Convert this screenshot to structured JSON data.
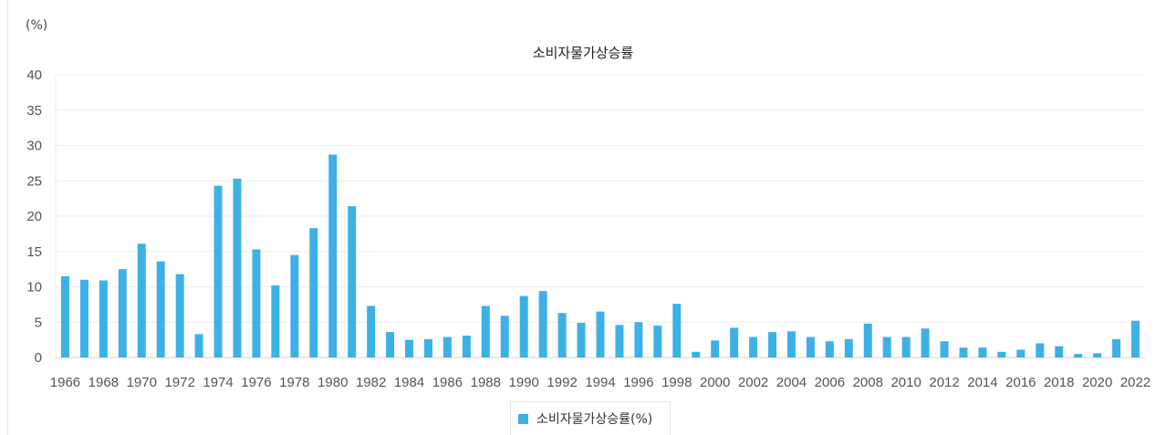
{
  "chart_data": {
    "type": "bar",
    "title": "소비자물가상승률",
    "ylabel": "(%)",
    "xlabel": "",
    "ylim": [
      0,
      40
    ],
    "yticks": [
      0,
      5,
      10,
      15,
      20,
      25,
      30,
      35,
      40
    ],
    "grid": true,
    "legend_position": "bottom-center",
    "bar_color": "#3db1e6",
    "categories": [
      "1966",
      "1967",
      "1968",
      "1969",
      "1970",
      "1971",
      "1972",
      "1973",
      "1974",
      "1975",
      "1976",
      "1977",
      "1978",
      "1979",
      "1980",
      "1981",
      "1982",
      "1983",
      "1984",
      "1985",
      "1986",
      "1987",
      "1988",
      "1989",
      "1990",
      "1991",
      "1992",
      "1993",
      "1994",
      "1995",
      "1996",
      "1997",
      "1998",
      "1999",
      "2000",
      "2001",
      "2002",
      "2003",
      "2004",
      "2005",
      "2006",
      "2007",
      "2008",
      "2009",
      "2010",
      "2011",
      "2012",
      "2013",
      "2014",
      "2015",
      "2016",
      "2017",
      "2018",
      "2019",
      "2020",
      "2021",
      "2022"
    ],
    "series": [
      {
        "name": "소비자물가상승률(%)",
        "values": [
          11.5,
          11.0,
          10.9,
          12.5,
          16.1,
          13.6,
          11.8,
          3.3,
          24.3,
          25.3,
          15.3,
          10.2,
          14.5,
          18.3,
          28.7,
          21.4,
          7.3,
          3.6,
          2.5,
          2.6,
          2.9,
          3.1,
          7.3,
          5.9,
          8.7,
          9.4,
          6.3,
          4.9,
          6.5,
          4.6,
          5.0,
          4.5,
          7.6,
          0.8,
          2.4,
          4.2,
          2.9,
          3.6,
          3.7,
          2.9,
          2.3,
          2.6,
          4.8,
          2.9,
          2.9,
          4.1,
          2.3,
          1.4,
          1.4,
          0.8,
          1.1,
          2.0,
          1.6,
          0.5,
          0.6,
          2.6,
          5.2
        ]
      }
    ],
    "xtick_labels": [
      "1966",
      "1968",
      "1970",
      "1972",
      "1974",
      "1976",
      "1978",
      "1980",
      "1982",
      "1984",
      "1986",
      "1988",
      "1990",
      "1992",
      "1994",
      "1996",
      "1998",
      "2000",
      "2002",
      "2004",
      "2006",
      "2008",
      "2010",
      "2012",
      "2014",
      "2016",
      "2018",
      "2020",
      "2022"
    ]
  }
}
